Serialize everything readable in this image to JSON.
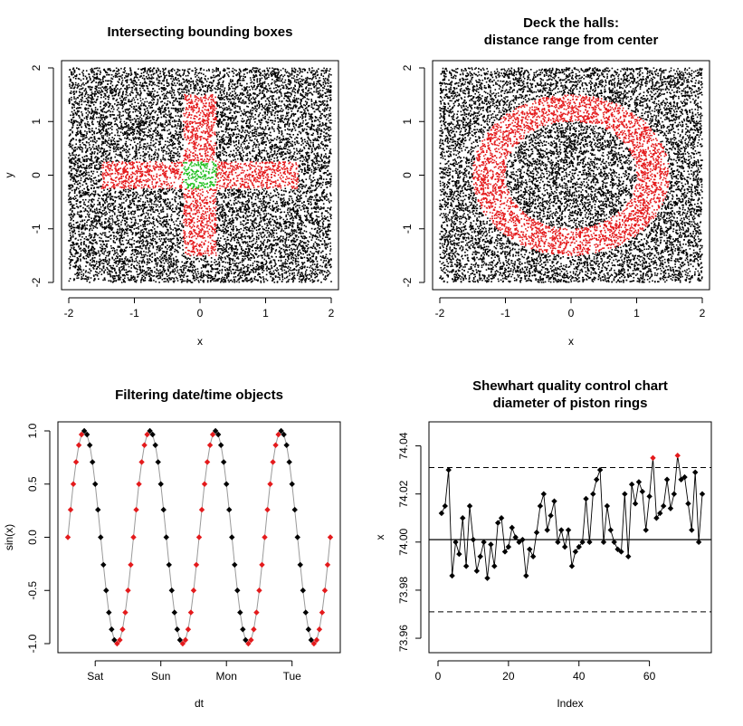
{
  "colors": {
    "black": "#000000",
    "red": "#e41a1c",
    "green": "#1fbf1f",
    "gray": "#999999"
  },
  "chart_data": [
    {
      "type": "scatter",
      "title": "Intersecting bounding boxes",
      "xlabel": "x",
      "ylabel": "y",
      "xlim": [
        -2,
        2
      ],
      "ylim": [
        -2,
        2
      ],
      "xticks": [
        -2,
        -1,
        0,
        1,
        2
      ],
      "yticks": [
        -2,
        -1,
        0,
        1,
        2
      ],
      "xtick_labels": [
        "-2",
        "-1",
        "0",
        "1",
        "2"
      ],
      "ytick_labels": [
        "-2",
        "-1",
        "0",
        "1",
        "2"
      ],
      "n_points": 12000,
      "distribution": "uniform on [-2,2] x [-2,2]",
      "rules": [
        {
          "region": "x in [-0.25,0.25] and y in [-0.25,0.25]",
          "color": "green"
        },
        {
          "region": "x in [-1.5,1.5] and y in [-0.25,0.25]",
          "color": "red"
        },
        {
          "region": "x in [-0.25,0.25] and y in [-1.5,1.5]",
          "color": "red"
        },
        {
          "region": "otherwise",
          "color": "black"
        }
      ]
    },
    {
      "type": "scatter",
      "title": "Deck the halls:\ndistance range from center",
      "title_lines": [
        "Deck the halls:",
        "distance range from center"
      ],
      "xlabel": "x",
      "ylabel": "",
      "xlim": [
        -2,
        2
      ],
      "ylim": [
        -2,
        2
      ],
      "xticks": [
        -2,
        -1,
        0,
        1,
        2
      ],
      "yticks": [
        -2,
        -1,
        0,
        1,
        2
      ],
      "xtick_labels": [
        "-2",
        "-1",
        "0",
        "1",
        "2"
      ],
      "ytick_labels": [
        "-2",
        "-1",
        "0",
        "1",
        "2"
      ],
      "n_points": 12000,
      "distribution": "uniform on [-2,2] x [-2,2]",
      "rules": [
        {
          "region": "distance from (0,0) in [1.0,1.5]",
          "color": "red"
        },
        {
          "region": "otherwise",
          "color": "black"
        }
      ]
    },
    {
      "type": "line",
      "title": "Filtering date/time objects",
      "xlabel": "dt",
      "ylabel": "sin(x)",
      "x_tick_labels": [
        "Sat",
        "Sun",
        "Mon",
        "Tue"
      ],
      "x_tick_positions_hours": [
        10,
        34,
        58,
        82
      ],
      "ylim": [
        -1,
        1
      ],
      "yticks": [
        -1,
        -0.5,
        0,
        0.5,
        1
      ],
      "ytick_labels": [
        "-1.0",
        "-0.5",
        "0.0",
        "0.5",
        "1.0"
      ],
      "x_start_hours": 0,
      "x_step_hours": 1,
      "n_points": 97,
      "y_function": "sin(i * 0.2618)",
      "line_color": "gray",
      "point_colors": {
        "filtered": "red",
        "other": "black"
      },
      "filter_rule": "red when sin(x) is increasing"
    },
    {
      "type": "line",
      "title": "Shewhart quality control chart\ndiameter of piston rings",
      "title_lines": [
        "Shewhart quality control chart",
        "diameter of piston rings"
      ],
      "xlabel": "Index",
      "ylabel": "x",
      "xlim": [
        0,
        75
      ],
      "ylim": [
        73.954,
        74.05
      ],
      "xticks": [
        0,
        20,
        40,
        60
      ],
      "xtick_labels": [
        "0",
        "20",
        "40",
        "60"
      ],
      "yticks": [
        73.96,
        73.98,
        74.0,
        74.02,
        74.04
      ],
      "ytick_labels": [
        "73.96",
        "73.98",
        "74.00",
        "74.02",
        "74.04"
      ],
      "center_line": 74.001,
      "upper_limit": 74.031,
      "lower_limit": 73.971,
      "out_of_control_indices": [
        61,
        68
      ],
      "values": [
        74.012,
        74.015,
        74.03,
        73.986,
        74.0,
        73.995,
        74.01,
        73.99,
        74.015,
        74.001,
        73.988,
        73.994,
        74.0,
        73.985,
        73.999,
        73.99,
        74.008,
        74.01,
        73.996,
        73.998,
        74.006,
        74.002,
        74.0,
        74.001,
        73.986,
        73.997,
        73.994,
        74.004,
        74.015,
        74.02,
        74.005,
        74.011,
        74.017,
        74.0,
        74.005,
        73.998,
        74.005,
        73.99,
        73.996,
        73.998,
        74.0,
        74.018,
        74.0,
        74.02,
        74.026,
        74.03,
        74.0,
        74.015,
        74.005,
        74.0,
        73.997,
        73.996,
        74.02,
        73.994,
        74.024,
        74.016,
        74.025,
        74.021,
        74.005,
        74.019,
        74.035,
        74.01,
        74.012,
        74.015,
        74.026,
        74.014,
        74.02,
        74.036,
        74.026,
        74.027,
        74.016,
        74.005,
        74.029,
        74.0,
        74.02
      ]
    }
  ]
}
